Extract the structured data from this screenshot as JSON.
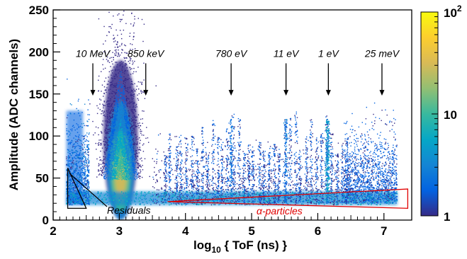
{
  "chart_data": {
    "type": "heatmap",
    "title": "",
    "xlabel": {
      "prefix": "log",
      "subscript": "10",
      "suffix": " { ToF (ns) }"
    },
    "ylabel": "Amplitude (ADC channels)",
    "xlim": [
      2,
      7.42
    ],
    "ylim": [
      0,
      250
    ],
    "xticks": [
      2,
      3,
      4,
      5,
      6,
      7
    ],
    "yticks": [
      0,
      50,
      100,
      150,
      200,
      250
    ],
    "grid": false,
    "colorbar": {
      "scale": "log",
      "range": [
        1,
        100
      ],
      "tick_labels": [
        {
          "value": 1,
          "base": "1",
          "exp": ""
        },
        {
          "value": 10,
          "base": "10",
          "exp": ""
        },
        {
          "value": 100,
          "base": "10",
          "exp": "2"
        }
      ],
      "colors": [
        "#352a87",
        "#0363e1",
        "#1485d4",
        "#06a7c6",
        "#38b99e",
        "#92bf73",
        "#d9ba56",
        "#fcce2e",
        "#f9fb0e"
      ]
    },
    "energy_markers": [
      {
        "label": "10 MeV",
        "x": 2.6,
        "arrow_from": 205,
        "arrow_to": 148
      },
      {
        "label": "850 keV",
        "x": 3.4,
        "arrow_from": 205,
        "arrow_to": 148
      },
      {
        "label": "780 eV",
        "x": 4.69,
        "arrow_from": 205,
        "arrow_to": 148
      },
      {
        "label": "11 eV",
        "x": 5.52,
        "arrow_from": 205,
        "arrow_to": 148
      },
      {
        "label": "1 eV",
        "x": 6.16,
        "arrow_from": 205,
        "arrow_to": 148
      },
      {
        "label": "25 meV",
        "x": 6.97,
        "arrow_from": 205,
        "arrow_to": 148
      }
    ],
    "regions": [
      {
        "label": "Residuals",
        "color": "#000000",
        "polygon": [
          [
            2.22,
            62
          ],
          [
            2.22,
            14
          ],
          [
            2.5,
            14
          ]
        ]
      },
      {
        "label": "α-particles",
        "color": "#e00000",
        "polygon": [
          [
            3.73,
            22
          ],
          [
            7.36,
            37
          ],
          [
            7.36,
            14
          ]
        ]
      }
    ],
    "features": [
      {
        "name": "fast-neutron-band",
        "x_range": [
          2.2,
          2.45
        ],
        "y_peak": 130,
        "intensity": "medium"
      },
      {
        "name": "gamma-flash-cluster",
        "x_center": 3.02,
        "y_center": 48,
        "y_max": 250,
        "intensity": "high"
      },
      {
        "name": "resonance-bands",
        "x_range": [
          3.7,
          6.45
        ],
        "y_max": 110,
        "intensity": "low"
      },
      {
        "name": "resonance-1eV",
        "x": 6.15,
        "y_max": 120,
        "intensity": "high"
      },
      {
        "name": "thermal-region",
        "x_range": [
          6.4,
          7.2
        ],
        "y_max": 95,
        "intensity": "medium"
      },
      {
        "name": "alpha-band",
        "x_range": [
          2.2,
          7.2
        ],
        "y_range": [
          18,
          34
        ],
        "intensity": "high"
      }
    ]
  }
}
